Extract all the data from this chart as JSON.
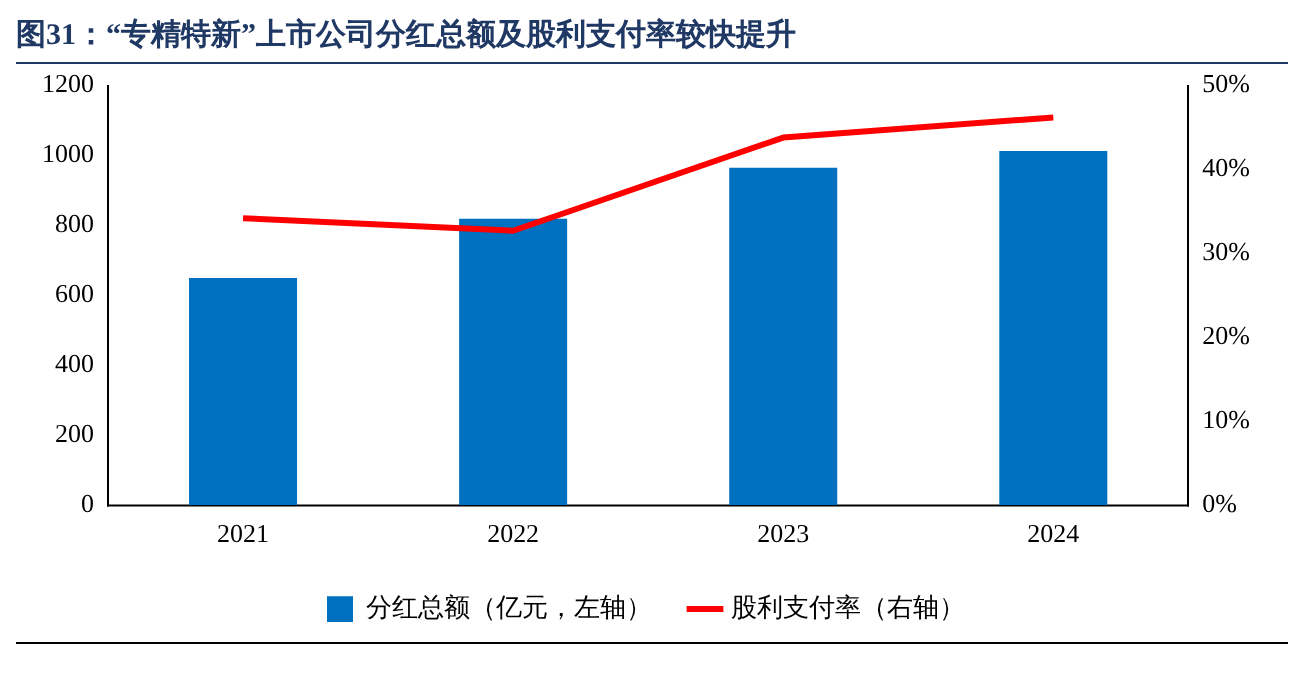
{
  "chart_data": {
    "type": "bar",
    "title": "图31：“专精特新”上市公司分红总额及股利支付率较快提升",
    "categories": [
      "2021",
      "2022",
      "2023",
      "2024"
    ],
    "series": [
      {
        "name": "分红总额（亿元，左轴）",
        "color": "#0070c0",
        "values": [
          650,
          819,
          965,
          1013
        ]
      },
      {
        "name": "股利支付率（右轴）",
        "type": "line",
        "axis": "y2",
        "color": "#ff0000",
        "values": [
          34.2,
          32.7,
          43.8,
          46.2
        ]
      }
    ],
    "ylim": [
      0,
      1200
    ],
    "yticks": [
      0,
      200,
      400,
      600,
      800,
      1000,
      1200
    ],
    "y2lim": [
      0,
      50
    ],
    "y2ticks": [
      {
        "value": 0,
        "label": "0%"
      },
      {
        "value": 10,
        "label": "10%"
      },
      {
        "value": 20,
        "label": "20%"
      },
      {
        "value": 30,
        "label": "30%"
      },
      {
        "value": 40,
        "label": "40%"
      },
      {
        "value": 50,
        "label": "50%"
      }
    ],
    "grid": false,
    "legend": "bottom",
    "marker": "none",
    "line_style": "solid"
  }
}
